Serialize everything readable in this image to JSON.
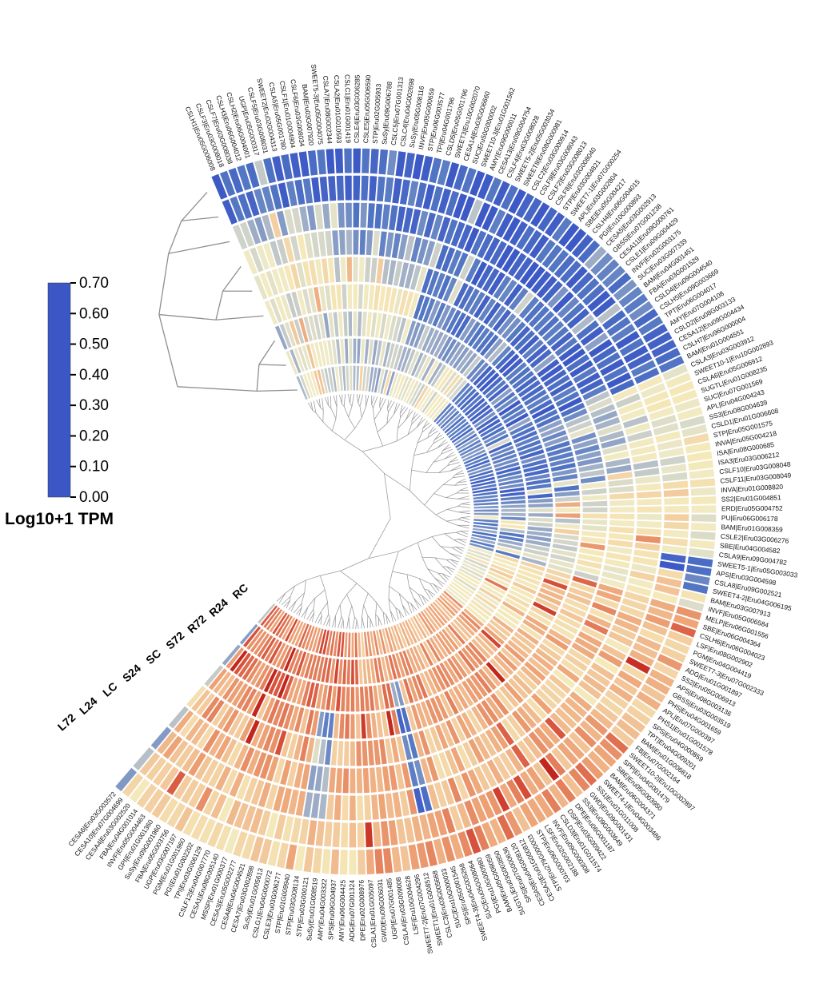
{
  "legend": {
    "title": "Log10+1 TPM",
    "ticks": [
      "0.70",
      "0.60",
      "0.50",
      "0.40",
      "0.30",
      "0.20",
      "0.10",
      "0.00"
    ],
    "min": 0.0,
    "max": 0.7
  },
  "colormap": {
    "stops": [
      [
        0.0,
        "#3b57c6"
      ],
      [
        0.1,
        "#5377c3"
      ],
      [
        0.2,
        "#93a5c6"
      ],
      [
        0.28,
        "#d6d8c9"
      ],
      [
        0.33,
        "#efeac6"
      ],
      [
        0.38,
        "#f5e9b9"
      ],
      [
        0.45,
        "#f2c99c"
      ],
      [
        0.52,
        "#eda275"
      ],
      [
        0.58,
        "#e27b58"
      ],
      [
        0.64,
        "#d54a36"
      ],
      [
        0.7,
        "#c2271e"
      ]
    ]
  },
  "chart_data": {
    "type": "heatmap",
    "subtype": "circular-annular",
    "value_unit": "Log10+1 TPM",
    "value_range": [
      0.0,
      0.7
    ],
    "legend_position": "left",
    "samples_inner_to_outer": [
      "RC",
      "R24",
      "R72",
      "S72",
      "SC",
      "S24",
      "LC",
      "L24",
      "L72"
    ],
    "genes": [
      "CSLH1|Eru05G006008",
      "CSLF3|Eru03G008018",
      "CSLF7|Eru03G008038",
      "CSLH3|Eru06G004012",
      "CSLH2|Eru06G004001",
      "UGP|Eru05G000317",
      "CSLF5|Eru03G008031",
      "SWEET2|Eru02G004313",
      "CSLA5|Eru05G001780",
      "CSLF1|Eru01G004904",
      "CSLF6|Eru03G008034",
      "BAM|Eru03G007920",
      "SWEET5-3|Eru05G004075",
      "CSLA7|Eru08G002344",
      "CSLA2|Eru01G010593",
      "CSLC1|Eru01G001419",
      "CSLE4|Eru03G006285",
      "CSLE5|Eru05G006590",
      "STP|Eru02G005933",
      "SuSy|Eru09G006788",
      "CSLC5|Eru07G001313",
      "CSLC4|Eru04G002698",
      "SuSy|Eru05G008116",
      "INVF|Eru05G000659",
      "STP|Eru06G003577",
      "TPI|Eru04G001796",
      "CSLD5|Eru05G001796",
      "SWEET3|Eru10G002070",
      "CESA14|Eru03G006660",
      "SUC|Eru50G000002",
      "SWEET10-3|Eru01G001562",
      "AMY|Eru09G000011",
      "CESA13|Eru09G004754",
      "CSLF4|Eru03G008028",
      "SWEET5-2|Eru05G003034",
      "SWEET8|Eru08G000981",
      "CSLC2|Eru03G000914",
      "CSLF9|Eru03G008043",
      "CSLF2|Eru03G008013",
      "CSLF8|Eru03G008040",
      "STP|Eru03G004821",
      "SWEET7-1|Eru07G000254",
      "APL|Eru03G002804",
      "SBE|Eru05G004217",
      "CSLH4|Eru06G004015",
      "PGI|Eru10G000893",
      "CESA5|Eru03G002913",
      "GBSS|Eru07G001238",
      "CESA11|Eru09G000761",
      "CSLE1|Eru09G004429",
      "INVF|Eru02G003175",
      "SUC|Eru03G007339",
      "BAM|Eru04G001451",
      "FBA|Eru03G001529",
      "CSLD4|Eru09G004540",
      "CSLH5|Eru09G003669",
      "TPT|Eru06G004017",
      "AMY|Eru07G004108",
      "CSLD2|Eru08G003133",
      "CESA12|Eru09G004434",
      "CSLH7|Eru96G000004",
      "BAM|Eru01G004551",
      "CSLA3|Eru03G003912",
      "SWEET10-1|Eru10G002893",
      "CSLA6|Eru05G006912",
      "SUGTL|Eru01G008235",
      "SUC|Eru07G001569",
      "APL|Eru04G004243",
      "SS3|Eru08G004639",
      "CSLD1|Eru01G006608",
      "STP|Eru05G001575",
      "INVA|Eru05G004218",
      "ISA|Eru08G000685",
      "ISA3|Eru03G006212",
      "CSLF10|Eru03G008048",
      "CSLF11|Eru03G008049",
      "INVA|Eru01G008820",
      "SS2|Eru01G004851",
      "ERD|Eru05G004752",
      "PU|Eru06G006178",
      "BAM|Eru01G008359",
      "CSLE2|Eru03G006276",
      "SBE|Eru04G004582",
      "CSLA9|Eru09G004782",
      "SWEET5-1|Eru05G003033",
      "APS|Eru03G004598",
      "CSLA8|Eru09G002521",
      "SWEET4-2|Eru04G006195",
      "BAM|Eru03G007913",
      "INVF|Eru05G006584",
      "MELP|Eru06G001556",
      "SBE|Eru06G004364",
      "CSLH6|Eru06G004023",
      "LSF|Eru08G002902",
      "PGM|Eru04G004419",
      "SWEET7-3|Eru07G002333",
      "ADG|Eru01G001897",
      "SS2|Eru05G006913",
      "APS|Eru08G003136",
      "GBSS|Eru03G003519",
      "PHS|Eru04G001659",
      "APL|Eru07G000397",
      "PHS1|Eru01G001578",
      "SPS|Eru04G000859",
      "TPT|Eru04G009201",
      "BAM|Eru01G006818",
      "FB|Eru07G002164",
      "SWEET10-2|Eru10G002897",
      "SPP|Eru04G001479",
      "SBE|Eru05G003950",
      "BAM|Eru06G004371",
      "SWEET4-1|Eru04G003486",
      "SS1|Eru01G011008",
      "GWD|Eru09G001431",
      "SS3|Eru09G003649",
      "DPE|Eru06G001187",
      "DSP|Eru03G009422",
      "CSLD3|Eru01G011574",
      "INVF|Eru09G000308",
      "LSF|Eru02G002188",
      "STP|Eru06G000703",
      "STP|Eru279G000003",
      "CESA2|Eru01G000812",
      "CESA9|Eru04G008120",
      "SPS|Eru07G000636",
      "SUGTL|Eru03G003850",
      "BAM|Eru05G008059",
      "PGI|Eru10G000980",
      "SUC|Eru05G008064",
      "SWEET4-3|Eru04G005268",
      "SPS|Eru05G001545",
      "SUC|Eru10G000033",
      "CSLC3|Eru03G005668",
      "SWEET1|Eru01G008512",
      "SWEET7-2|Eru07G004296",
      "LSF|Eru10G004628",
      "CSLA4|Eru03G009008",
      "UGP|Eru07G001485",
      "GWD|Eru09G006031",
      "CSLA1|Eru01G005097",
      "DPE|Eru02G008976",
      "ADG|Eru07G001324",
      "AMY|Eru06G004425",
      "SPS|Eru09G004937",
      "AMY|Eru04G003322",
      "SuSy|Eru01G008519",
      "STP|Eru03G000121",
      "STP|Eru03G008134",
      "STP|Eru01G009940",
      "CSLE3|Eru03G006277",
      "CSLG1|Eru04G000072",
      "SuSy|Eru01G005613",
      "CESA7|Eru03G002898",
      "CESA8|Eru04G004521",
      "CESA3|Eru05G002277",
      "MSSP|Eru01G000377",
      "CESA1|Eru08G005140",
      "CSLF12|Eru04G007770",
      "TPI|Eru03G006129",
      "PGI|Eru01G002202",
      "PGM|Eru01G001960",
      "UGP|Eru03G007197",
      "FBA|Eru05G003756",
      "SuSy|Eru09G001960",
      "GPI|Eru01G001360",
      "INVF|Eru05G004463",
      "FBA|Eru04G001014",
      "CESA4|Eru03G002520",
      "CESA10|Eru07G004699",
      "CESA6|Eru03G003572"
    ],
    "pattern_segments": [
      {
        "from": 0,
        "to": 12,
        "rings": [
          0.3,
          0.28,
          0.26,
          0.32,
          0.36,
          0.32,
          0.22,
          0.06,
          0.05
        ]
      },
      {
        "from": 13,
        "to": 27,
        "rings": [
          0.24,
          0.26,
          0.3,
          0.34,
          0.28,
          0.18,
          0.1,
          0.06,
          0.05
        ]
      },
      {
        "from": 28,
        "to": 44,
        "rings": [
          0.33,
          0.28,
          0.2,
          0.12,
          0.09,
          0.07,
          0.05,
          0.05,
          0.04
        ]
      },
      {
        "from": 45,
        "to": 61,
        "rings": [
          0.12,
          0.09,
          0.07,
          0.06,
          0.05,
          0.05,
          0.04,
          0.06,
          0.1
        ]
      },
      {
        "from": 62,
        "to": 75,
        "rings": [
          0.08,
          0.09,
          0.11,
          0.15,
          0.2,
          0.24,
          0.3,
          0.34,
          0.35
        ]
      },
      {
        "from": 76,
        "to": 89,
        "rings": [
          0.14,
          0.17,
          0.24,
          0.3,
          0.33,
          0.36,
          0.38,
          0.4,
          0.36
        ]
      },
      {
        "from": 90,
        "to": 106,
        "rings": [
          0.34,
          0.38,
          0.42,
          0.44,
          0.46,
          0.45,
          0.43,
          0.46,
          0.48
        ]
      },
      {
        "from": 107,
        "to": 139,
        "rings": [
          0.5,
          0.52,
          0.53,
          0.51,
          0.49,
          0.47,
          0.49,
          0.51,
          0.53
        ]
      },
      {
        "from": 140,
        "to": 168,
        "rings": [
          0.58,
          0.6,
          0.57,
          0.52,
          0.5,
          0.48,
          0.46,
          0.43,
          0.42
        ]
      }
    ],
    "overrides": [
      {
        "from": 145,
        "to": 147,
        "rings": [
          3,
          6
        ],
        "value": 0.18
      },
      {
        "from": 131,
        "to": 132,
        "rings": [
          2,
          6
        ],
        "value": 0.1
      },
      {
        "from": 84,
        "to": 85,
        "rings": [
          7,
          8
        ],
        "value": 0.03
      },
      {
        "from": 86,
        "to": 87,
        "rings": [
          8,
          8
        ],
        "value": 0.08
      },
      {
        "from": 5,
        "to": 5,
        "rings": [
          0,
          2
        ],
        "value": 0.45
      }
    ],
    "noise_amplitude": 0.07,
    "samples_dendrogram": {
      "h": 30,
      "c": [
        {
          "h": 14,
          "c": [
            {
              "h": 8,
              "c": [
                {
                  "leaf": 2
                },
                {
                  "leaf": 1
                }
              ]
            },
            {
              "leaf": 0
            }
          ]
        },
        {
          "h": 20,
          "c": [
            {
              "h": 11,
              "c": [
                {
                  "h": 6,
                  "c": [
                    {
                      "leaf": 5
                    },
                    {
                      "leaf": 4
                    }
                  ]
                },
                {
                  "leaf": 3
                }
              ]
            },
            {
              "h": 11,
              "c": [
                {
                  "leaf": 6
                },
                {
                  "h": 6,
                  "c": [
                    {
                      "leaf": 8
                    },
                    {
                      "leaf": 7
                    }
                  ]
                }
              ]
            }
          ]
        }
      ]
    }
  }
}
